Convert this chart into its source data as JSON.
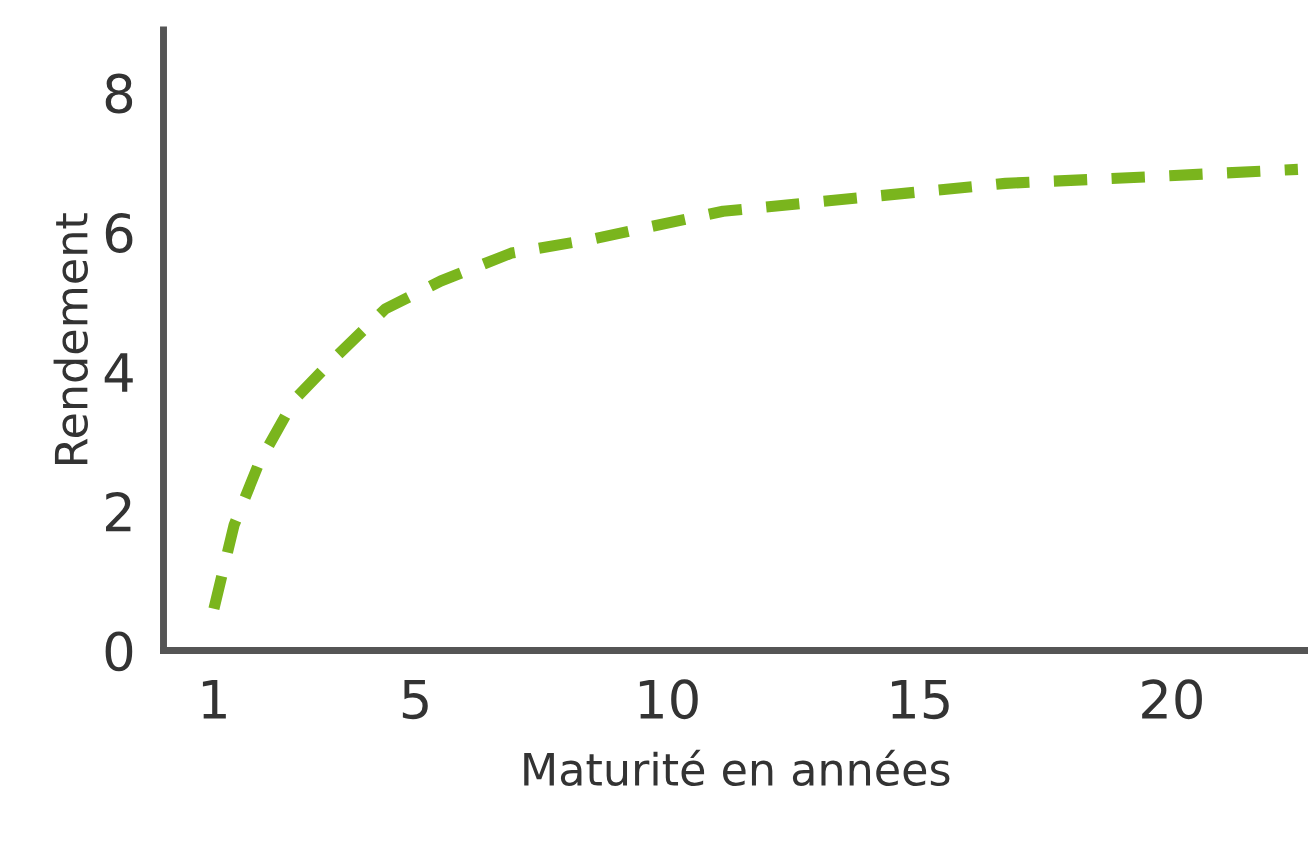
{
  "chart_data": {
    "type": "line",
    "xlabel": "Maturité en années",
    "ylabel": "Rendement",
    "x": [
      1.0,
      1.4,
      1.9,
      2.6,
      3.4,
      4.4,
      5.5,
      6.9,
      8.5,
      11.1,
      13.9,
      16.7,
      19.7,
      22.5
    ],
    "series": [
      {
        "color": "#7ab51d",
        "values": [
          0.6,
          1.8,
          2.7,
          3.6,
          4.2,
          4.9,
          5.3,
          5.7,
          5.9,
          6.3,
          6.5,
          6.7,
          6.8,
          6.9
        ]
      }
    ],
    "xlim": [
      0,
      22.7
    ],
    "xticks": [
      1,
      5,
      10,
      15,
      20
    ],
    "ylim": [
      0,
      8.9
    ],
    "yticks": [
      0,
      2,
      4,
      6,
      8
    ],
    "line_style": "dashed",
    "grid": false,
    "legend": false
  }
}
